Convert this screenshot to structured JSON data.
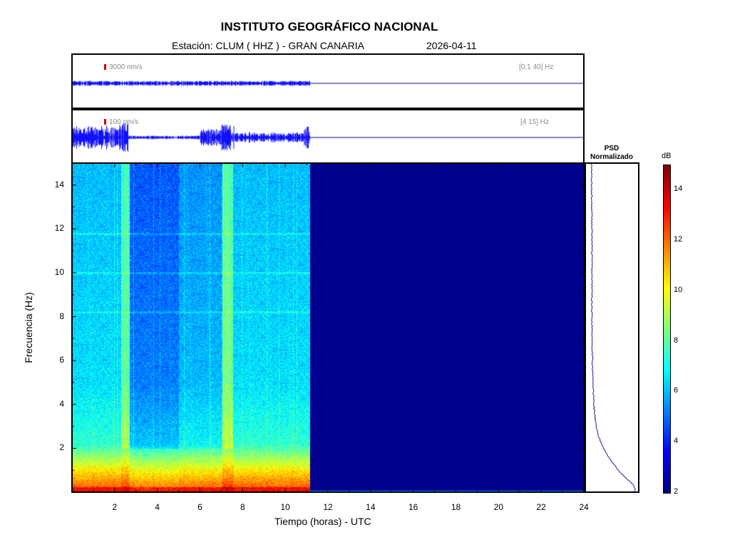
{
  "header": {
    "title": "INSTITUTO GEOGRÁFICO NACIONAL",
    "station": "Estación:  CLUM ( HHZ ) - GRAN CANARIA",
    "date": "2026-04-11"
  },
  "trace_top": {
    "scale": "3000 nm/s",
    "band": "[0.1 40] Hz"
  },
  "trace_bottom": {
    "scale": "100 nm/s",
    "band": "[4 15] Hz"
  },
  "psd": {
    "title_line1": "PSD",
    "title_line2": "Normalizado"
  },
  "colorbar": {
    "unit": "dB",
    "ticks": [
      "2",
      "4",
      "6",
      "8",
      "10",
      "12",
      "14"
    ],
    "range": [
      2,
      15
    ]
  },
  "colors": {
    "trace": "#1010ff",
    "no_data": "#00008f",
    "psd_line": "#2020a0"
  },
  "chart_data": {
    "type": "heatmap",
    "title": "INSTITUTO GEOGRÁFICO NACIONAL",
    "xlabel": "Tiempo (horas) - UTC",
    "ylabel": "Frecuencia  (Hz)",
    "x_ticks": [
      "2",
      "4",
      "6",
      "8",
      "10",
      "12",
      "14",
      "16",
      "18",
      "20",
      "22",
      "24"
    ],
    "y_ticks": [
      "2",
      "4",
      "6",
      "8",
      "10",
      "12",
      "14"
    ],
    "xlim": [
      0,
      24
    ],
    "ylim": [
      0,
      15
    ],
    "data_end_hour": 11.15,
    "colorbar_unit": "dB",
    "colorbar_range": [
      2,
      15
    ],
    "noisy_hours": [
      2.5,
      7.3
    ],
    "psd_profile": {
      "freq": [
        0.1,
        0.3,
        0.6,
        1.0,
        1.5,
        2.0,
        2.5,
        3.0,
        4.0,
        5.0,
        6.0,
        8.0,
        10.0,
        12.0,
        14.0,
        15.0
      ],
      "value": [
        0.98,
        0.95,
        0.8,
        0.62,
        0.45,
        0.32,
        0.22,
        0.16,
        0.12,
        0.1,
        0.09,
        0.08,
        0.08,
        0.08,
        0.07,
        0.07
      ]
    }
  }
}
